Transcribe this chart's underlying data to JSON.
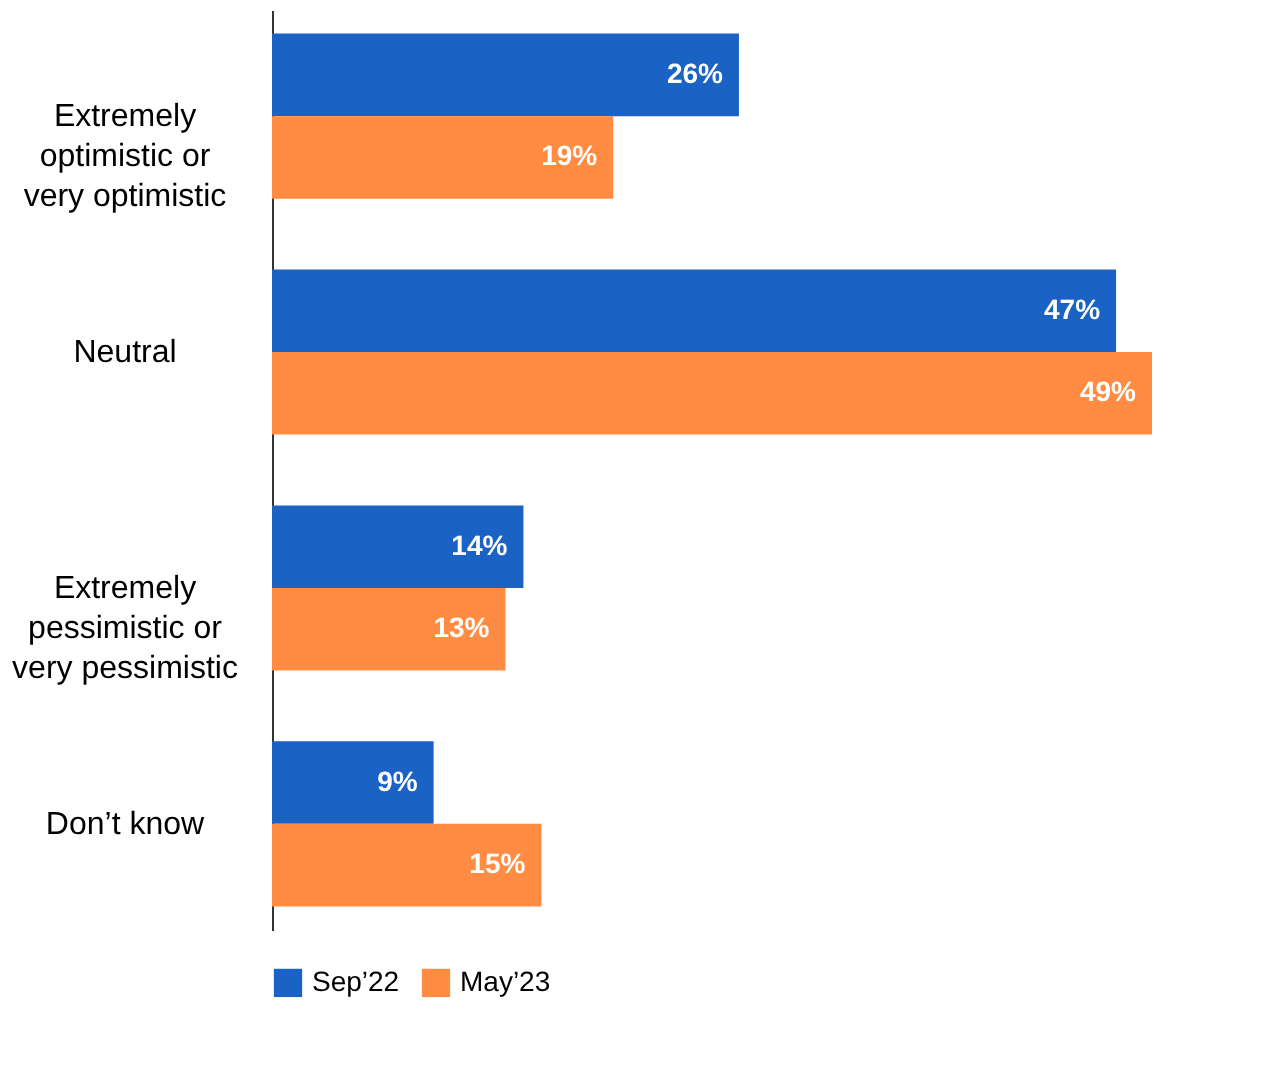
{
  "chart_data": {
    "type": "bar",
    "orientation": "horizontal",
    "categories": [
      "Extremely\noptimistic or\nvery optimistic",
      "Neutral",
      "Extremely\npessimistic or\nvery pessimistic",
      "Don’t know"
    ],
    "series": [
      {
        "name": "Sep’22",
        "color": "#1a62c4",
        "values": [
          26,
          47,
          14,
          9
        ],
        "value_labels": [
          "26%",
          "47%",
          "14%",
          "9%"
        ]
      },
      {
        "name": "May’23",
        "color": "#ff8c42",
        "values": [
          19,
          49,
          13,
          15
        ],
        "value_labels": [
          "19%",
          "49%",
          "13%",
          "15%"
        ]
      }
    ],
    "legend": "bottom"
  }
}
